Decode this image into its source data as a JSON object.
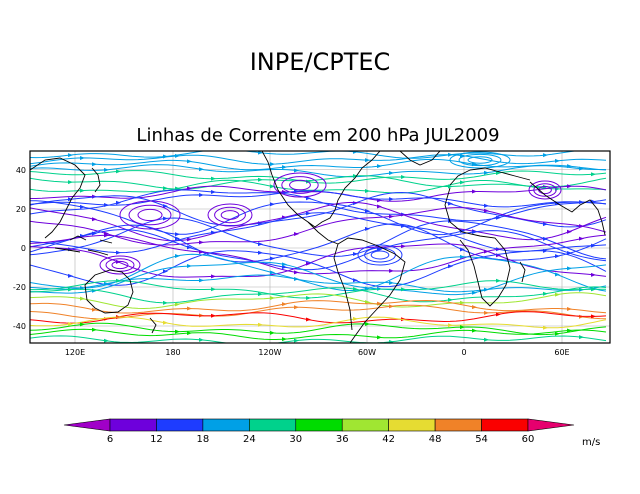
{
  "header": {
    "institution": "INPE/CPTEC",
    "title": "Linhas de Corrente em 200 hPa JUL2009"
  },
  "map": {
    "lat_ticks": [
      "40",
      "20",
      "0",
      "-20",
      "-40"
    ],
    "lon_ticks": [
      "120E",
      "180",
      "120W",
      "60W",
      "0",
      "60E"
    ]
  },
  "colorbar": {
    "unit": "m/s",
    "labels": [
      "6",
      "12",
      "18",
      "24",
      "30",
      "36",
      "42",
      "48",
      "54",
      "60"
    ],
    "colors": [
      "#a000c8",
      "#6e00dc",
      "#1e3cff",
      "#00a0e6",
      "#00d28c",
      "#00dc00",
      "#a0e632",
      "#e6dc32",
      "#f08228",
      "#fa0000",
      "#e6006e"
    ]
  }
}
